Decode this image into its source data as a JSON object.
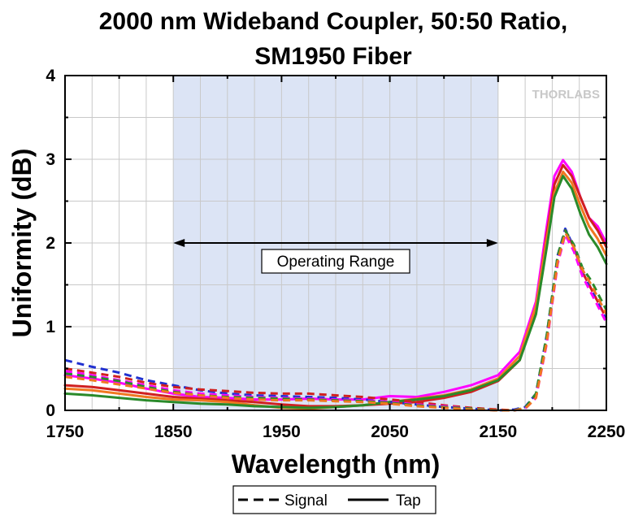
{
  "chart_data": {
    "type": "line",
    "title_lines": [
      "2000 nm Wideband Coupler, 50:50 Ratio,",
      "SM1950 Fiber"
    ],
    "xlabel": "Wavelength (nm)",
    "ylabel": "Uniformity (dB)",
    "xlim": [
      1750,
      2250
    ],
    "ylim": [
      0,
      4
    ],
    "x_ticks": [
      "1750",
      "1850",
      "1950",
      "2050",
      "2150",
      "2250"
    ],
    "y_ticks": [
      "0",
      "1",
      "2",
      "3",
      "4"
    ],
    "grid": true,
    "shaded_region": {
      "x_start": 1850,
      "x_end": 2150,
      "color": "#dce4f5"
    },
    "annotation": {
      "text": "Operating Range",
      "x_start": 1850,
      "x_end": 2150,
      "y": 2.0
    },
    "watermark": "THORLABS",
    "legend": {
      "placement": "bottom-center",
      "entries": [
        {
          "label": "Signal",
          "style": "dashed"
        },
        {
          "label": "Tap",
          "style": "solid"
        }
      ]
    },
    "series": [
      {
        "group": "Tap",
        "style": "solid",
        "color": "#ff00ff",
        "x": [
          1750,
          1775,
          1800,
          1825,
          1850,
          1875,
          1900,
          1925,
          1950,
          1975,
          2000,
          2025,
          2050,
          2075,
          2100,
          2125,
          2150,
          2170,
          2185,
          2195,
          2202,
          2210,
          2218,
          2226,
          2234,
          2242,
          2250
        ],
        "y": [
          0.42,
          0.38,
          0.33,
          0.26,
          0.2,
          0.16,
          0.15,
          0.13,
          0.13,
          0.14,
          0.13,
          0.13,
          0.17,
          0.16,
          0.22,
          0.3,
          0.42,
          0.7,
          1.3,
          2.2,
          2.8,
          2.99,
          2.85,
          2.55,
          2.3,
          2.2,
          2.0
        ]
      },
      {
        "group": "Tap",
        "style": "solid",
        "color": "#d02020",
        "x": [
          1750,
          1775,
          1800,
          1825,
          1850,
          1875,
          1900,
          1925,
          1950,
          1975,
          2000,
          2025,
          2050,
          2075,
          2100,
          2125,
          2150,
          2170,
          2185,
          2195,
          2202,
          2210,
          2218,
          2226,
          2234,
          2242,
          2250
        ],
        "y": [
          0.3,
          0.28,
          0.24,
          0.2,
          0.16,
          0.14,
          0.12,
          0.1,
          0.07,
          0.05,
          0.05,
          0.06,
          0.08,
          0.1,
          0.15,
          0.22,
          0.35,
          0.6,
          1.2,
          2.1,
          2.7,
          2.93,
          2.8,
          2.55,
          2.3,
          2.15,
          1.95
        ]
      },
      {
        "group": "Tap",
        "style": "solid",
        "color": "#f07820",
        "x": [
          1750,
          1775,
          1800,
          1825,
          1850,
          1875,
          1900,
          1925,
          1950,
          1975,
          2000,
          2025,
          2050,
          2075,
          2100,
          2125,
          2150,
          2170,
          2185,
          2195,
          2202,
          2210,
          2218,
          2226,
          2234,
          2242,
          2250
        ],
        "y": [
          0.26,
          0.24,
          0.2,
          0.16,
          0.13,
          0.12,
          0.1,
          0.06,
          0.03,
          0.02,
          0.04,
          0.06,
          0.1,
          0.14,
          0.18,
          0.25,
          0.38,
          0.65,
          1.25,
          2.05,
          2.6,
          2.85,
          2.72,
          2.45,
          2.2,
          2.05,
          1.85
        ]
      },
      {
        "group": "Tap",
        "style": "solid",
        "color": "#2a8a2a",
        "x": [
          1750,
          1775,
          1800,
          1825,
          1850,
          1875,
          1900,
          1925,
          1950,
          1975,
          2000,
          2025,
          2050,
          2075,
          2100,
          2125,
          2150,
          2170,
          2185,
          2195,
          2202,
          2210,
          2218,
          2226,
          2234,
          2242,
          2250
        ],
        "y": [
          0.2,
          0.18,
          0.15,
          0.12,
          0.1,
          0.08,
          0.07,
          0.05,
          0.04,
          0.03,
          0.04,
          0.06,
          0.1,
          0.13,
          0.17,
          0.24,
          0.36,
          0.6,
          1.15,
          1.95,
          2.55,
          2.8,
          2.65,
          2.35,
          2.1,
          1.95,
          1.75
        ]
      },
      {
        "group": "Signal",
        "style": "dashed",
        "color": "#2030d0",
        "x": [
          1750,
          1775,
          1800,
          1825,
          1850,
          1875,
          1900,
          1925,
          1950,
          1975,
          2000,
          2025,
          2050,
          2075,
          2100,
          2125,
          2150,
          2165,
          2175,
          2185,
          2195,
          2205,
          2212,
          2220,
          2228,
          2236,
          2244,
          2250
        ],
        "y": [
          0.6,
          0.52,
          0.45,
          0.36,
          0.3,
          0.24,
          0.2,
          0.18,
          0.17,
          0.16,
          0.15,
          0.13,
          0.1,
          0.07,
          0.04,
          0.02,
          0.0,
          0.01,
          0.04,
          0.2,
          0.9,
          1.85,
          2.17,
          1.95,
          1.65,
          1.45,
          1.25,
          1.08
        ]
      },
      {
        "group": "Signal",
        "style": "dashed",
        "color": "#d02020",
        "x": [
          1750,
          1775,
          1800,
          1825,
          1850,
          1875,
          1900,
          1925,
          1950,
          1975,
          2000,
          2025,
          2050,
          2075,
          2100,
          2125,
          2150,
          2165,
          2175,
          2185,
          2195,
          2205,
          2212,
          2220,
          2228,
          2236,
          2244,
          2250
        ],
        "y": [
          0.5,
          0.45,
          0.4,
          0.33,
          0.28,
          0.25,
          0.23,
          0.21,
          0.2,
          0.2,
          0.18,
          0.16,
          0.13,
          0.1,
          0.06,
          0.03,
          0.01,
          0.0,
          0.03,
          0.18,
          0.85,
          1.8,
          2.15,
          1.95,
          1.65,
          1.45,
          1.25,
          1.1
        ]
      },
      {
        "group": "Signal",
        "style": "dashed",
        "color": "#ff00ff",
        "x": [
          1750,
          1775,
          1800,
          1825,
          1850,
          1875,
          1900,
          1925,
          1950,
          1975,
          2000,
          2025,
          2050,
          2075,
          2100,
          2125,
          2150,
          2165,
          2175,
          2185,
          2195,
          2205,
          2212,
          2220,
          2228,
          2236,
          2244,
          2250
        ],
        "y": [
          0.47,
          0.42,
          0.36,
          0.3,
          0.24,
          0.2,
          0.18,
          0.16,
          0.15,
          0.14,
          0.13,
          0.12,
          0.1,
          0.07,
          0.05,
          0.02,
          0.0,
          0.0,
          0.02,
          0.15,
          0.8,
          1.75,
          2.1,
          1.9,
          1.6,
          1.4,
          1.2,
          1.05
        ]
      },
      {
        "group": "Signal",
        "style": "dashed",
        "color": "#2a8a2a",
        "x": [
          1750,
          1775,
          1800,
          1825,
          1850,
          1875,
          1900,
          1925,
          1950,
          1975,
          2000,
          2025,
          2050,
          2075,
          2100,
          2125,
          2150,
          2165,
          2175,
          2185,
          2195,
          2205,
          2212,
          2220,
          2228,
          2236,
          2244,
          2250
        ],
        "y": [
          0.44,
          0.4,
          0.35,
          0.28,
          0.22,
          0.18,
          0.16,
          0.15,
          0.14,
          0.13,
          0.12,
          0.11,
          0.09,
          0.06,
          0.04,
          0.02,
          0.0,
          0.0,
          0.03,
          0.2,
          0.9,
          1.85,
          2.15,
          1.98,
          1.7,
          1.55,
          1.35,
          1.2
        ]
      },
      {
        "group": "Signal",
        "style": "dashed",
        "color": "#f07820",
        "x": [
          1750,
          1775,
          1800,
          1825,
          1850,
          1875,
          1900,
          1925,
          1950,
          1975,
          2000,
          2025,
          2050,
          2075,
          2100,
          2125,
          2150,
          2165,
          2175,
          2185,
          2195,
          2205,
          2212,
          2220,
          2228,
          2236,
          2244,
          2250
        ],
        "y": [
          0.4,
          0.36,
          0.31,
          0.26,
          0.21,
          0.18,
          0.15,
          0.13,
          0.12,
          0.12,
          0.11,
          0.1,
          0.08,
          0.05,
          0.03,
          0.01,
          0.0,
          0.0,
          0.02,
          0.15,
          0.82,
          1.78,
          2.12,
          1.95,
          1.68,
          1.5,
          1.3,
          1.15
        ]
      }
    ]
  }
}
